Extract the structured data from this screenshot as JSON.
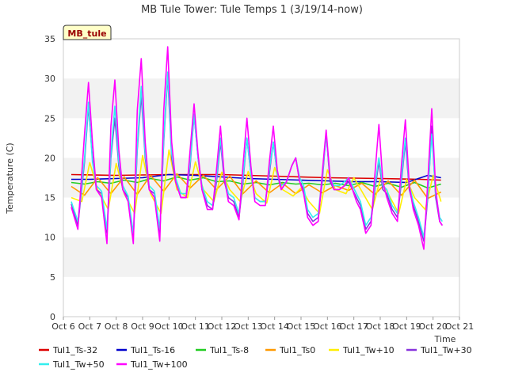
{
  "chart_data": {
    "type": "line",
    "title": "MB Tule Tower: Tule Temps 1 (3/19/14-now)",
    "xlabel": "Time",
    "ylabel": "Temperature (C)",
    "badge": "MB_tule",
    "ylim": [
      0,
      35
    ],
    "xlim": [
      6,
      21
    ],
    "yticks": [
      0,
      5,
      10,
      15,
      20,
      25,
      30,
      35
    ],
    "xticks": [
      {
        "value": 6,
        "label": "Oct 6"
      },
      {
        "value": 7,
        "label": "Oct 7"
      },
      {
        "value": 8,
        "label": "Oct 8"
      },
      {
        "value": 9,
        "label": "Oct 9"
      },
      {
        "value": 10,
        "label": "Oct 10"
      },
      {
        "value": 11,
        "label": "Oct 11"
      },
      {
        "value": 12,
        "label": "Oct 12"
      },
      {
        "value": 13,
        "label": "Oct 13"
      },
      {
        "value": 14,
        "label": "Oct 14"
      },
      {
        "value": 15,
        "label": "Oct 15"
      },
      {
        "value": 16,
        "label": "Oct 16"
      },
      {
        "value": 17,
        "label": "Oct 17"
      },
      {
        "value": 18,
        "label": "Oct 18"
      },
      {
        "value": 19,
        "label": "Oct 19"
      },
      {
        "value": 20,
        "label": "Oct 20"
      },
      {
        "value": 21,
        "label": "Oct 21"
      }
    ],
    "grid": "horizontal-bands",
    "legend_position": "bottom",
    "series": [
      {
        "name": "Tul1_Ts-32",
        "color": "#dd0000",
        "x": [
          6.3,
          8,
          10,
          12,
          14,
          16,
          18,
          19.5,
          20.3
        ],
        "y": [
          17.9,
          17.8,
          17.9,
          17.9,
          17.7,
          17.5,
          17.4,
          17.3,
          17.2
        ]
      },
      {
        "name": "Tul1_Ts-16",
        "color": "#0000cc",
        "x": [
          6.3,
          7,
          8,
          9,
          10,
          11,
          12,
          13,
          14,
          15,
          16,
          17,
          18,
          19,
          19.8,
          20.3
        ],
        "y": [
          17.3,
          17.3,
          17.4,
          17.5,
          17.9,
          17.8,
          17.6,
          17.4,
          17.3,
          17.2,
          17.1,
          17.0,
          17.0,
          16.9,
          17.8,
          17.5
        ]
      },
      {
        "name": "Tul1_Ts-8",
        "color": "#22cc22",
        "x": [
          6.3,
          6.8,
          7.3,
          7.8,
          8.3,
          8.8,
          9.3,
          9.8,
          10.3,
          10.8,
          11.3,
          11.8,
          12.3,
          12.8,
          13.3,
          13.8,
          14.3,
          14.8,
          15.3,
          15.8,
          16.3,
          16.8,
          17.3,
          17.8,
          18.3,
          18.8,
          19.3,
          19.8,
          20.3
        ],
        "y": [
          16.9,
          16.7,
          17.0,
          16.8,
          17.2,
          16.9,
          17.4,
          17.1,
          17.6,
          17.2,
          17.5,
          17.0,
          17.1,
          16.7,
          16.9,
          16.6,
          16.9,
          16.7,
          16.8,
          16.6,
          16.8,
          16.5,
          16.9,
          16.4,
          16.8,
          16.3,
          16.9,
          16.2,
          16.7
        ]
      },
      {
        "name": "Tul1_Ts0",
        "color": "#ff9900",
        "x": [
          6.3,
          6.8,
          7.3,
          7.8,
          8.3,
          8.8,
          9.3,
          9.8,
          10.3,
          10.8,
          11.3,
          11.8,
          12.3,
          12.8,
          13.3,
          13.8,
          14.3,
          14.8,
          15.3,
          15.8,
          16.3,
          16.8,
          17.3,
          17.8,
          18.3,
          18.8,
          19.3,
          19.8,
          20.3
        ],
        "y": [
          16.4,
          15.3,
          17.5,
          15.5,
          17.6,
          15.4,
          17.8,
          15.8,
          18.0,
          16.2,
          17.8,
          16.0,
          17.7,
          15.5,
          17.1,
          15.6,
          16.8,
          15.5,
          16.6,
          15.6,
          16.5,
          15.9,
          16.8,
          15.4,
          17.1,
          15.3,
          17.2,
          14.9,
          15.7
        ]
      },
      {
        "name": "Tul1_Tw+10",
        "color": "#ffee00",
        "x": [
          6.3,
          6.7,
          7.0,
          7.3,
          7.7,
          8.0,
          8.3,
          8.7,
          9.0,
          9.3,
          9.7,
          10.0,
          10.3,
          10.7,
          11.0,
          11.3,
          11.7,
          12.0,
          12.3,
          12.7,
          13.0,
          13.3,
          13.7,
          14.0,
          14.3,
          14.7,
          15.0,
          15.3,
          15.7,
          16.0,
          16.3,
          16.7,
          17.0,
          17.3,
          17.7,
          18.0,
          18.3,
          18.7,
          19.0,
          19.3,
          19.7,
          20.0,
          20.3
        ],
        "y": [
          15.0,
          14.5,
          19.4,
          16.0,
          13.5,
          19.3,
          15.5,
          13.0,
          20.3,
          15.5,
          13.0,
          21.0,
          16.0,
          15.0,
          19.5,
          16.0,
          14.5,
          18.2,
          16.0,
          14.5,
          18.3,
          15.5,
          14.3,
          18.8,
          16.0,
          15.2,
          16.2,
          14.5,
          13.0,
          18.5,
          16.0,
          15.5,
          17.5,
          15.8,
          13.5,
          17.3,
          15.5,
          13.0,
          17.3,
          15.0,
          13.5,
          17.8,
          14.5
        ]
      },
      {
        "name": "Tul1_Tw+30",
        "color": "#8833dd",
        "x": [
          6.3,
          6.55,
          6.8,
          6.95,
          7.1,
          7.25,
          7.45,
          7.65,
          7.8,
          7.95,
          8.1,
          8.25,
          8.45,
          8.65,
          8.8,
          8.95,
          9.1,
          9.25,
          9.45,
          9.65,
          9.8,
          9.95,
          10.1,
          10.25,
          10.45,
          10.65,
          10.8,
          10.95,
          11.1,
          11.25,
          11.45,
          11.65,
          11.8,
          11.95,
          12.1,
          12.25,
          12.45,
          12.65,
          12.8,
          12.95,
          13.1,
          13.25,
          13.45,
          13.65,
          13.8,
          13.95,
          14.1,
          14.25,
          14.45,
          14.65,
          14.8,
          14.95,
          15.1,
          15.25,
          15.45,
          15.65,
          15.8,
          15.95,
          16.1,
          16.25,
          16.45,
          16.65,
          16.8,
          16.95,
          17.1,
          17.25,
          17.45,
          17.65,
          17.8,
          17.95,
          18.1,
          18.25,
          18.45,
          18.65,
          18.8,
          18.95,
          19.1,
          19.25,
          19.45,
          19.65,
          19.8,
          19.95,
          20.1,
          20.25,
          20.35
        ],
        "y": [
          14.2,
          11.5,
          19.5,
          26.5,
          20.0,
          16.0,
          15.5,
          10.5,
          20.0,
          25.0,
          19.0,
          16.0,
          15.0,
          10.0,
          21.0,
          28.0,
          20.0,
          16.0,
          15.5,
          10.5,
          22.0,
          30.5,
          20.0,
          17.0,
          15.0,
          15.0,
          19.0,
          25.5,
          20.0,
          16.0,
          14.0,
          13.5,
          17.0,
          22.0,
          17.0,
          15.0,
          14.5,
          12.5,
          17.0,
          22.5,
          18.0,
          15.0,
          14.5,
          14.5,
          18.0,
          22.0,
          18.0,
          16.0,
          17.0,
          19.0,
          20.0,
          17.0,
          16.0,
          13.0,
          12.0,
          12.5,
          17.0,
          23.0,
          17.0,
          16.0,
          16.0,
          16.5,
          17.0,
          16.0,
          15.0,
          14.0,
          11.0,
          12.0,
          16.0,
          19.5,
          16.0,
          15.5,
          13.5,
          12.5,
          17.0,
          22.0,
          16.0,
          14.0,
          12.0,
          9.5,
          15.0,
          24.0,
          15.0,
          12.0,
          11.5
        ]
      },
      {
        "name": "Tul1_Tw+50",
        "color": "#33eeee",
        "x": [
          6.3,
          6.55,
          6.8,
          6.95,
          7.1,
          7.25,
          7.45,
          7.65,
          7.8,
          7.95,
          8.1,
          8.25,
          8.45,
          8.65,
          8.8,
          8.95,
          9.1,
          9.25,
          9.45,
          9.65,
          9.8,
          9.95,
          10.1,
          10.25,
          10.45,
          10.65,
          10.8,
          10.95,
          11.1,
          11.25,
          11.45,
          11.65,
          11.8,
          11.95,
          12.1,
          12.25,
          12.45,
          12.65,
          12.8,
          12.95,
          13.1,
          13.25,
          13.45,
          13.65,
          13.8,
          13.95,
          14.1,
          14.25,
          14.45,
          14.65,
          14.8,
          14.95,
          15.1,
          15.25,
          15.45,
          15.65,
          15.8,
          15.95,
          16.1,
          16.25,
          16.45,
          16.65,
          16.8,
          16.95,
          17.1,
          17.25,
          17.45,
          17.65,
          17.8,
          17.95,
          18.1,
          18.25,
          18.45,
          18.65,
          18.8,
          18.95,
          19.1,
          19.25,
          19.45,
          19.65,
          19.8,
          19.95,
          20.1,
          20.25,
          20.35
        ],
        "y": [
          14.5,
          12.0,
          20.0,
          27.0,
          19.5,
          16.5,
          15.8,
          11.0,
          20.5,
          26.5,
          19.5,
          16.5,
          15.2,
          10.5,
          21.5,
          29.0,
          20.5,
          16.5,
          15.8,
          11.0,
          22.5,
          30.8,
          20.5,
          17.5,
          15.5,
          15.5,
          19.5,
          25.5,
          20.0,
          16.5,
          14.5,
          14.0,
          17.5,
          22.5,
          17.5,
          15.5,
          15.0,
          13.0,
          17.5,
          22.5,
          18.0,
          15.0,
          14.5,
          14.5,
          18.5,
          22.0,
          18.0,
          16.5,
          17.0,
          19.0,
          20.0,
          17.5,
          16.5,
          13.5,
          12.5,
          13.0,
          17.5,
          23.0,
          17.5,
          16.5,
          16.5,
          17.0,
          17.5,
          16.5,
          15.5,
          14.5,
          11.5,
          12.5,
          16.5,
          20.0,
          16.5,
          16.0,
          14.0,
          13.0,
          17.5,
          22.5,
          16.5,
          14.5,
          12.5,
          10.0,
          15.5,
          23.0,
          15.5,
          12.5,
          12.0
        ]
      },
      {
        "name": "Tul1_Tw+100",
        "color": "#ff00ff",
        "x": [
          6.3,
          6.55,
          6.8,
          6.95,
          7.1,
          7.25,
          7.45,
          7.65,
          7.8,
          7.95,
          8.1,
          8.25,
          8.45,
          8.65,
          8.8,
          8.95,
          9.1,
          9.25,
          9.45,
          9.65,
          9.8,
          9.95,
          10.1,
          10.25,
          10.45,
          10.65,
          10.8,
          10.95,
          11.1,
          11.25,
          11.45,
          11.65,
          11.8,
          11.95,
          12.1,
          12.25,
          12.45,
          12.65,
          12.8,
          12.95,
          13.1,
          13.25,
          13.45,
          13.65,
          13.8,
          13.95,
          14.1,
          14.25,
          14.45,
          14.65,
          14.8,
          14.95,
          15.1,
          15.25,
          15.45,
          15.65,
          15.8,
          15.95,
          16.1,
          16.25,
          16.45,
          16.65,
          16.8,
          16.95,
          17.1,
          17.25,
          17.45,
          17.65,
          17.8,
          17.95,
          18.1,
          18.25,
          18.45,
          18.65,
          18.8,
          18.95,
          19.1,
          19.25,
          19.45,
          19.65,
          19.8,
          19.95,
          20.1,
          20.25,
          20.35
        ],
        "y": [
          13.8,
          11.0,
          23.0,
          29.5,
          22.0,
          16.0,
          15.0,
          9.2,
          24.0,
          29.8,
          21.0,
          16.0,
          14.5,
          9.2,
          26.0,
          32.5,
          22.0,
          16.0,
          15.0,
          9.5,
          26.0,
          34.0,
          22.0,
          17.0,
          15.0,
          15.0,
          21.0,
          26.8,
          20.5,
          16.0,
          13.5,
          13.5,
          18.5,
          24.0,
          17.5,
          14.5,
          14.0,
          12.2,
          19.0,
          25.0,
          19.0,
          14.5,
          14.0,
          14.0,
          19.5,
          24.0,
          18.5,
          16.0,
          17.0,
          19.0,
          20.0,
          17.0,
          15.5,
          12.5,
          11.5,
          12.0,
          18.0,
          23.5,
          17.5,
          16.0,
          16.0,
          16.5,
          17.5,
          16.0,
          14.5,
          13.5,
          10.5,
          11.5,
          18.0,
          24.2,
          17.0,
          15.0,
          13.0,
          12.0,
          19.0,
          24.8,
          16.5,
          13.5,
          11.5,
          8.5,
          17.0,
          26.2,
          16.0,
          12.0,
          11.5
        ]
      }
    ]
  }
}
